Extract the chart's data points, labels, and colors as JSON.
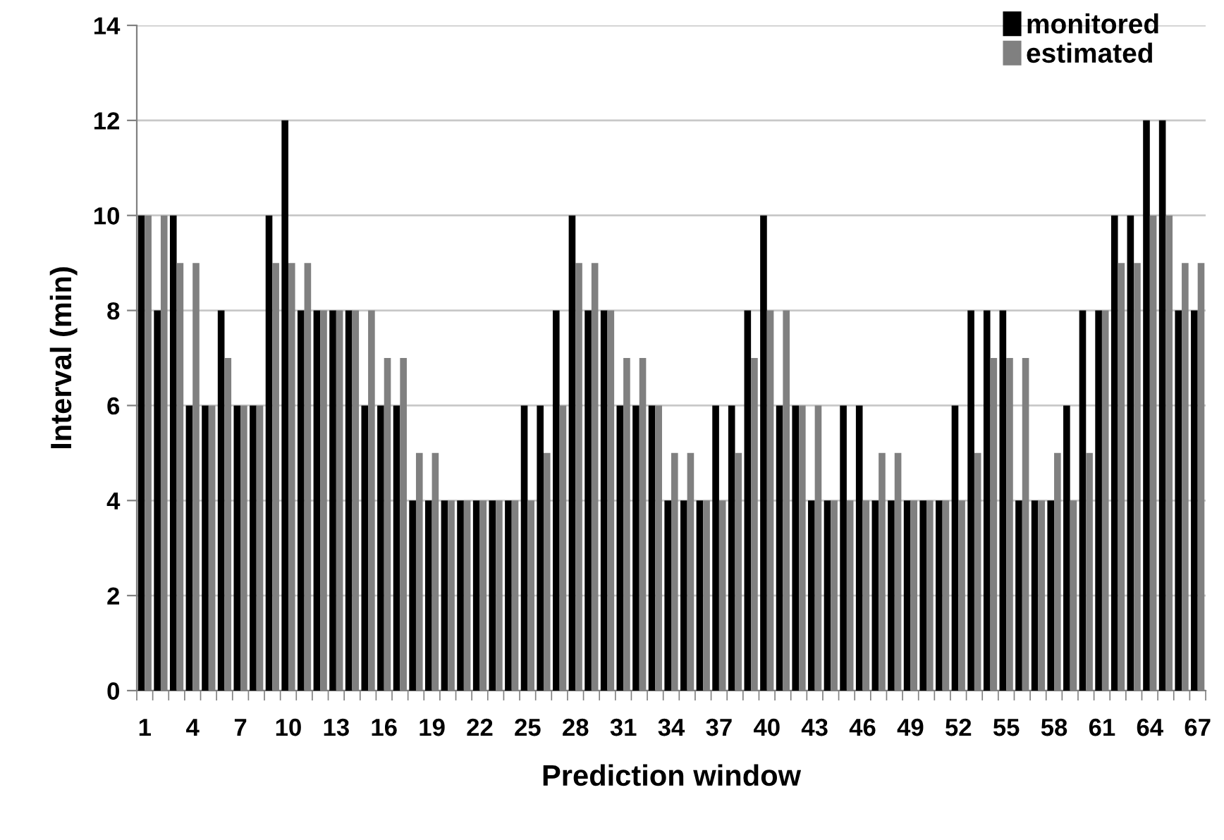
{
  "chart_data": {
    "type": "bar",
    "xlabel": "Prediction window",
    "ylabel": "Interval (min)",
    "categories": [
      "1",
      null,
      null,
      "4",
      null,
      null,
      "7",
      null,
      null,
      "10",
      null,
      null,
      "13",
      null,
      null,
      "16",
      null,
      null,
      "19",
      null,
      null,
      "22",
      null,
      null,
      "25",
      null,
      null,
      "28",
      null,
      null,
      "31",
      null,
      null,
      "34",
      null,
      null,
      "37",
      null,
      null,
      "40",
      null,
      null,
      "43",
      null,
      null,
      "46",
      null,
      null,
      "49",
      null,
      null,
      "52",
      null,
      null,
      "55",
      null,
      null,
      "58",
      null,
      null,
      "61",
      null,
      null,
      "64",
      null,
      null,
      "67"
    ],
    "series": [
      {
        "name": "monitored",
        "color": "#000000",
        "values": [
          10,
          8,
          10,
          6,
          6,
          8,
          6,
          6,
          10,
          12,
          8,
          8,
          8,
          8,
          6,
          6,
          6,
          4,
          4,
          4,
          4,
          4,
          4,
          4,
          6,
          6,
          8,
          10,
          8,
          8,
          6,
          6,
          6,
          4,
          4,
          4,
          6,
          6,
          8,
          10,
          6,
          6,
          4,
          4,
          6,
          6,
          4,
          4,
          4,
          4,
          4,
          6,
          8,
          8,
          8,
          4,
          4,
          4,
          6,
          8,
          8,
          10,
          10,
          12,
          12,
          8,
          8
        ]
      },
      {
        "name": "estimated",
        "color": "#808080",
        "values": [
          10,
          10,
          9,
          9,
          6,
          7,
          6,
          6,
          9,
          9,
          9,
          8,
          8,
          8,
          8,
          7,
          7,
          5,
          5,
          4,
          4,
          4,
          4,
          4,
          4,
          5,
          6,
          9,
          9,
          8,
          7,
          7,
          6,
          5,
          5,
          4,
          4,
          5,
          7,
          8,
          8,
          6,
          6,
          4,
          4,
          4,
          5,
          5,
          4,
          4,
          4,
          4,
          5,
          7,
          7,
          7,
          4,
          5,
          4,
          5,
          8,
          9,
          9,
          10,
          10,
          9,
          9
        ]
      }
    ],
    "ylim": [
      0,
      14
    ],
    "yticks": [
      0,
      2,
      4,
      6,
      8,
      10,
      12,
      14
    ],
    "grid": "y",
    "legend": "top right"
  }
}
